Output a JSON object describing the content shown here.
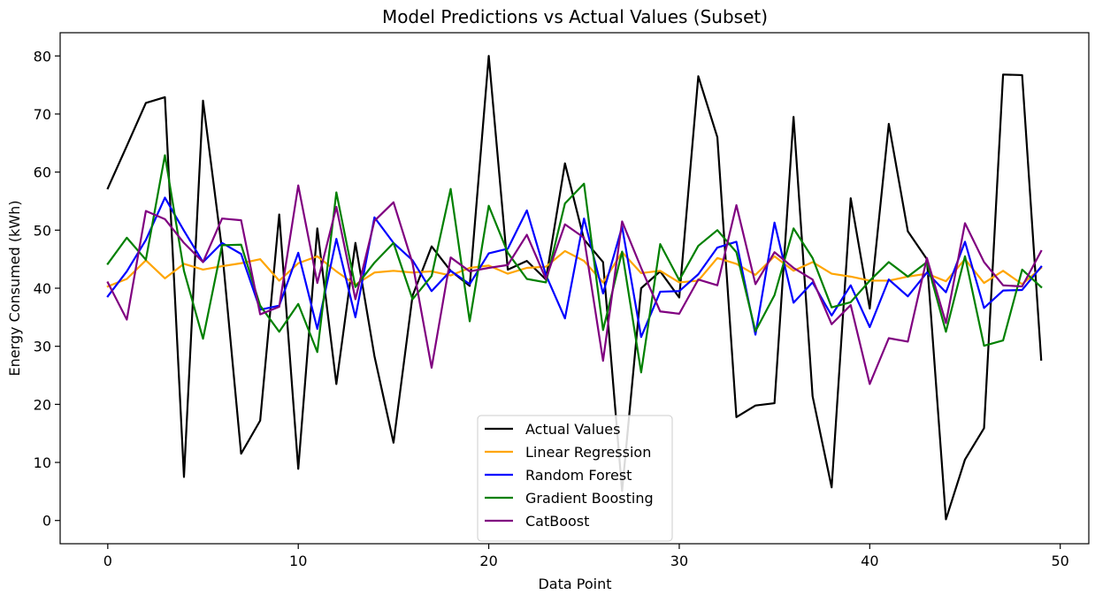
{
  "chart_data": {
    "type": "line",
    "title": "Model Predictions vs Actual Values (Subset)",
    "xlabel": "Data Point",
    "ylabel": "Energy Consumed (kWh)",
    "xlim": [
      -2.5,
      51.5
    ],
    "ylim": [
      -4,
      84
    ],
    "xticks": [
      0,
      10,
      20,
      30,
      40,
      50
    ],
    "yticks": [
      0,
      10,
      20,
      30,
      40,
      50,
      60,
      70,
      80
    ],
    "grid": false,
    "legend_position": "lower-center",
    "x": [
      0,
      1,
      2,
      3,
      4,
      5,
      6,
      7,
      8,
      9,
      10,
      11,
      12,
      13,
      14,
      15,
      16,
      17,
      18,
      19,
      20,
      21,
      22,
      23,
      24,
      25,
      26,
      27,
      28,
      29,
      30,
      31,
      32,
      33,
      34,
      35,
      36,
      37,
      38,
      39,
      40,
      41,
      42,
      43,
      44,
      45,
      46,
      47,
      48,
      49
    ],
    "series": [
      {
        "name": "Actual Values",
        "color": "#000000",
        "values": [
          57.2,
          64.5,
          71.9,
          72.9,
          7.5,
          72.3,
          46.6,
          11.5,
          17.2,
          52.7,
          8.9,
          50.3,
          23.5,
          47.8,
          28.3,
          13.4,
          38.7,
          47.2,
          43.0,
          40.4,
          80.0,
          43.2,
          44.7,
          41.5,
          61.5,
          48.4,
          44.5,
          5.1,
          40.0,
          42.9,
          38.4,
          76.5,
          66.0,
          17.8,
          19.8,
          20.2,
          69.5,
          21.4,
          5.7,
          55.5,
          36.5,
          68.3,
          49.8,
          45.0,
          0.2,
          10.5,
          15.9,
          76.8,
          76.7,
          27.7
        ]
      },
      {
        "name": "Linear Regression",
        "color": "#ffa500",
        "values": [
          40.3,
          41.6,
          44.8,
          41.7,
          44.2,
          43.2,
          43.8,
          44.3,
          45.0,
          41.3,
          44.3,
          45.5,
          42.9,
          40.6,
          42.7,
          43.0,
          42.7,
          42.9,
          42.2,
          43.5,
          43.9,
          42.5,
          43.5,
          43.7,
          46.4,
          44.7,
          41.0,
          46.2,
          42.6,
          43.0,
          41.0,
          41.3,
          45.2,
          44.2,
          42.3,
          45.5,
          43.0,
          44.5,
          42.5,
          42.0,
          41.3,
          41.3,
          42.0,
          42.5,
          41.2,
          45.0,
          40.9,
          43.0,
          40.7,
          43.5
        ]
      },
      {
        "name": "Random Forest",
        "color": "#0000ff",
        "values": [
          38.6,
          42.9,
          48.3,
          55.6,
          49.9,
          44.5,
          47.8,
          45.9,
          36.3,
          37.0,
          46.1,
          33.0,
          48.5,
          35.0,
          52.2,
          47.8,
          44.8,
          39.5,
          43.0,
          40.7,
          46.0,
          46.8,
          53.4,
          42.3,
          34.8,
          52.0,
          39.1,
          50.6,
          31.6,
          39.4,
          39.5,
          42.4,
          47.0,
          48.0,
          32.0,
          51.3,
          37.5,
          41.0,
          35.3,
          40.5,
          33.3,
          41.5,
          38.6,
          42.7,
          39.3,
          48.0,
          36.6,
          39.6,
          39.7,
          43.7
        ]
      },
      {
        "name": "Gradient Boosting",
        "color": "#008000",
        "values": [
          44.2,
          48.7,
          44.9,
          62.9,
          43.0,
          31.3,
          47.4,
          47.5,
          37.0,
          32.5,
          37.3,
          29.0,
          56.5,
          40.2,
          44.4,
          47.8,
          38.1,
          42.1,
          57.1,
          34.3,
          54.2,
          46.1,
          41.6,
          41.0,
          54.6,
          58.0,
          32.8,
          46.3,
          25.5,
          47.6,
          41.4,
          47.3,
          50.0,
          46.2,
          32.6,
          38.8,
          50.3,
          45.2,
          36.7,
          37.6,
          41.3,
          44.5,
          42.0,
          44.5,
          32.5,
          45.5,
          30.1,
          31.0,
          43.2,
          40.2
        ]
      },
      {
        "name": "CatBoost",
        "color": "#800080",
        "values": [
          41.0,
          34.6,
          53.3,
          51.9,
          47.8,
          44.5,
          52.0,
          51.7,
          35.5,
          36.8,
          57.7,
          40.9,
          54.0,
          38.1,
          51.6,
          54.8,
          44.3,
          26.3,
          45.3,
          42.9,
          43.5,
          44.0,
          49.2,
          41.6,
          51.0,
          48.7,
          27.5,
          51.5,
          43.5,
          36.0,
          35.6,
          41.5,
          40.5,
          54.3,
          40.7,
          46.2,
          43.5,
          41.5,
          33.8,
          37.1,
          23.5,
          31.4,
          30.8,
          45.2,
          34.0,
          51.2,
          44.5,
          40.5,
          40.3,
          46.4
        ]
      }
    ]
  }
}
